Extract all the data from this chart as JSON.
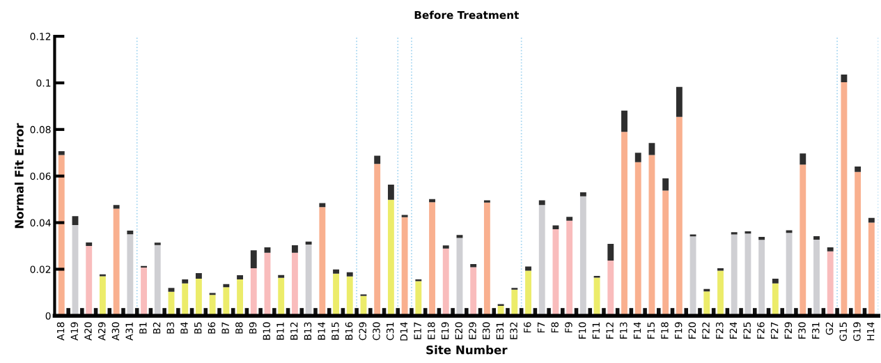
{
  "chart_data": {
    "type": "bar",
    "title": "Before Treatment",
    "xlabel": "Site Number",
    "ylabel": "Normal Fit Error",
    "stacked": true,
    "grid": false,
    "legend": false,
    "categories": [
      "A18",
      "A19",
      "A20",
      "A29",
      "A30",
      "A31",
      "B1",
      "B2",
      "B3",
      "B4",
      "B5",
      "B6",
      "B7",
      "B8",
      "B9",
      "B10",
      "B11",
      "B12",
      "B13",
      "B14",
      "B15",
      "B16",
      "C29",
      "C30",
      "C31",
      "D14",
      "E17",
      "E18",
      "E19",
      "E20",
      "E29",
      "E30",
      "E31",
      "E32",
      "F6",
      "F7",
      "F8",
      "F9",
      "F10",
      "F11",
      "F12",
      "F13",
      "F14",
      "F15",
      "F18",
      "F19",
      "F20",
      "F22",
      "F23",
      "F24",
      "F25",
      "F26",
      "F27",
      "F29",
      "F30",
      "F31",
      "G2",
      "G15",
      "G19",
      "H14"
    ],
    "series": [
      {
        "colors": [
          "#f9b08f",
          "#cfcfd3",
          "#f9bcbc",
          "#ecec6a",
          "#f9b08f",
          "#cfcfd3",
          "#f9bcbc",
          "#cfcfd3",
          "#ecec6a",
          "#ecec6a",
          "#ecec6a",
          "#ecec6a",
          "#ecec6a",
          "#ecec6a",
          "#f9bcbc",
          "#f9bcbc",
          "#ecec6a",
          "#f9bcbc",
          "#cfcfd3",
          "#f9b08f",
          "#ecec6a",
          "#ecec6a",
          "#ecec6a",
          "#f9b08f",
          "#ecec6a",
          "#f9b08f",
          "#ecec6a",
          "#f9b08f",
          "#f9bcbc",
          "#cfcfd3",
          "#f9bcbc",
          "#f9b08f",
          "#ecec6a",
          "#ecec6a",
          "#ecec6a",
          "#cfcfd3",
          "#f9bcbc",
          "#f9bcbc",
          "#cfcfd3",
          "#ecec6a",
          "#f9bcbc",
          "#f9b08f",
          "#f9b08f",
          "#f9b08f",
          "#f9b08f",
          "#f9b08f",
          "#cfcfd3",
          "#ecec6a",
          "#ecec6a",
          "#cfcfd3",
          "#cfcfd3",
          "#cfcfd3",
          "#ecec6a",
          "#cfcfd3",
          "#f9b08f",
          "#cfcfd3",
          "#f9bcbc",
          "#f9b08f",
          "#f9b08f",
          "#f9b08f"
        ],
        "values": [
          0.069,
          0.039,
          0.03,
          0.017,
          0.046,
          0.035,
          0.0207,
          0.0304,
          0.0103,
          0.0139,
          0.0159,
          0.009,
          0.0123,
          0.0156,
          0.0204,
          0.0271,
          0.0163,
          0.0271,
          0.0306,
          0.0467,
          0.0181,
          0.0169,
          0.0085,
          0.0652,
          0.0498,
          0.0423,
          0.0149,
          0.0488,
          0.0289,
          0.0334,
          0.0209,
          0.0486,
          0.0043,
          0.0112,
          0.0194,
          0.0476,
          0.0372,
          0.0408,
          0.0513,
          0.0164,
          0.0237,
          0.079,
          0.066,
          0.069,
          0.0538,
          0.0854,
          0.0341,
          0.0105,
          0.0194,
          0.0349,
          0.0353,
          0.0326,
          0.0139,
          0.0356,
          0.0649,
          0.0327,
          0.0277,
          0.1003,
          0.0618,
          0.04
        ]
      },
      {
        "color": "#2e2e2e",
        "values": [
          0.0017,
          0.0038,
          0.0015,
          0.0008,
          0.0016,
          0.0016,
          0.0007,
          0.001,
          0.0017,
          0.0017,
          0.0024,
          0.0008,
          0.0013,
          0.0018,
          0.0077,
          0.0023,
          0.0012,
          0.0032,
          0.0013,
          0.0017,
          0.0018,
          0.0018,
          0.0007,
          0.0035,
          0.0065,
          0.001,
          0.0007,
          0.0013,
          0.0013,
          0.0013,
          0.0013,
          0.001,
          0.0007,
          0.0008,
          0.0018,
          0.002,
          0.0016,
          0.0017,
          0.0017,
          0.0007,
          0.0072,
          0.0091,
          0.004,
          0.0052,
          0.0052,
          0.0129,
          0.0008,
          0.001,
          0.001,
          0.001,
          0.001,
          0.0013,
          0.002,
          0.0011,
          0.0048,
          0.0015,
          0.0017,
          0.0033,
          0.0023,
          0.002
        ]
      }
    ],
    "ylim": [
      0,
      0.12
    ],
    "yticks": [
      0,
      0.02,
      0.04,
      0.06,
      0.08,
      0.1,
      0.12
    ]
  }
}
